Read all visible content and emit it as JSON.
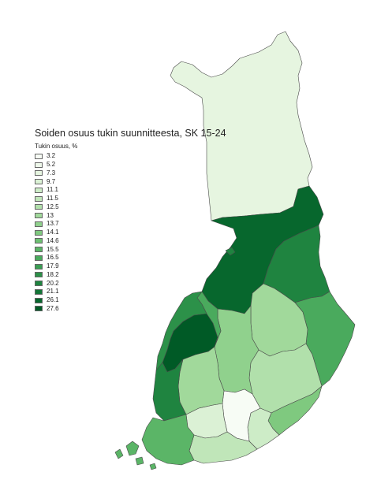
{
  "title": "Soiden osuus tukin suunnitteesta, SK 15-24",
  "legend": {
    "heading": "Tukin osuus, %",
    "items": [
      {
        "label": "3.2",
        "color": "#f7fcf5"
      },
      {
        "label": "5.2",
        "color": "#eef8ea"
      },
      {
        "label": "7.3",
        "color": "#e6f5e0"
      },
      {
        "label": "9.7",
        "color": "#dbf1d5"
      },
      {
        "label": "11.1",
        "color": "#cdecc7"
      },
      {
        "label": "11.5",
        "color": "#c0e6b9"
      },
      {
        "label": "12.5",
        "color": "#b1e0ab"
      },
      {
        "label": "13",
        "color": "#a1d99b"
      },
      {
        "label": "13.7",
        "color": "#90d18d"
      },
      {
        "label": "14.1",
        "color": "#7fc97f"
      },
      {
        "label": "14.6",
        "color": "#6dc072"
      },
      {
        "label": "15.5",
        "color": "#5bb567"
      },
      {
        "label": "16.5",
        "color": "#4aaa5d"
      },
      {
        "label": "17.9",
        "color": "#3a9e53"
      },
      {
        "label": "18.2",
        "color": "#2c9149"
      },
      {
        "label": "20.2",
        "color": "#1f8440"
      },
      {
        "label": "21.1",
        "color": "#137637"
      },
      {
        "label": "26.1",
        "color": "#07672d"
      },
      {
        "label": "27.6",
        "color": "#005a26"
      }
    ]
  }
}
